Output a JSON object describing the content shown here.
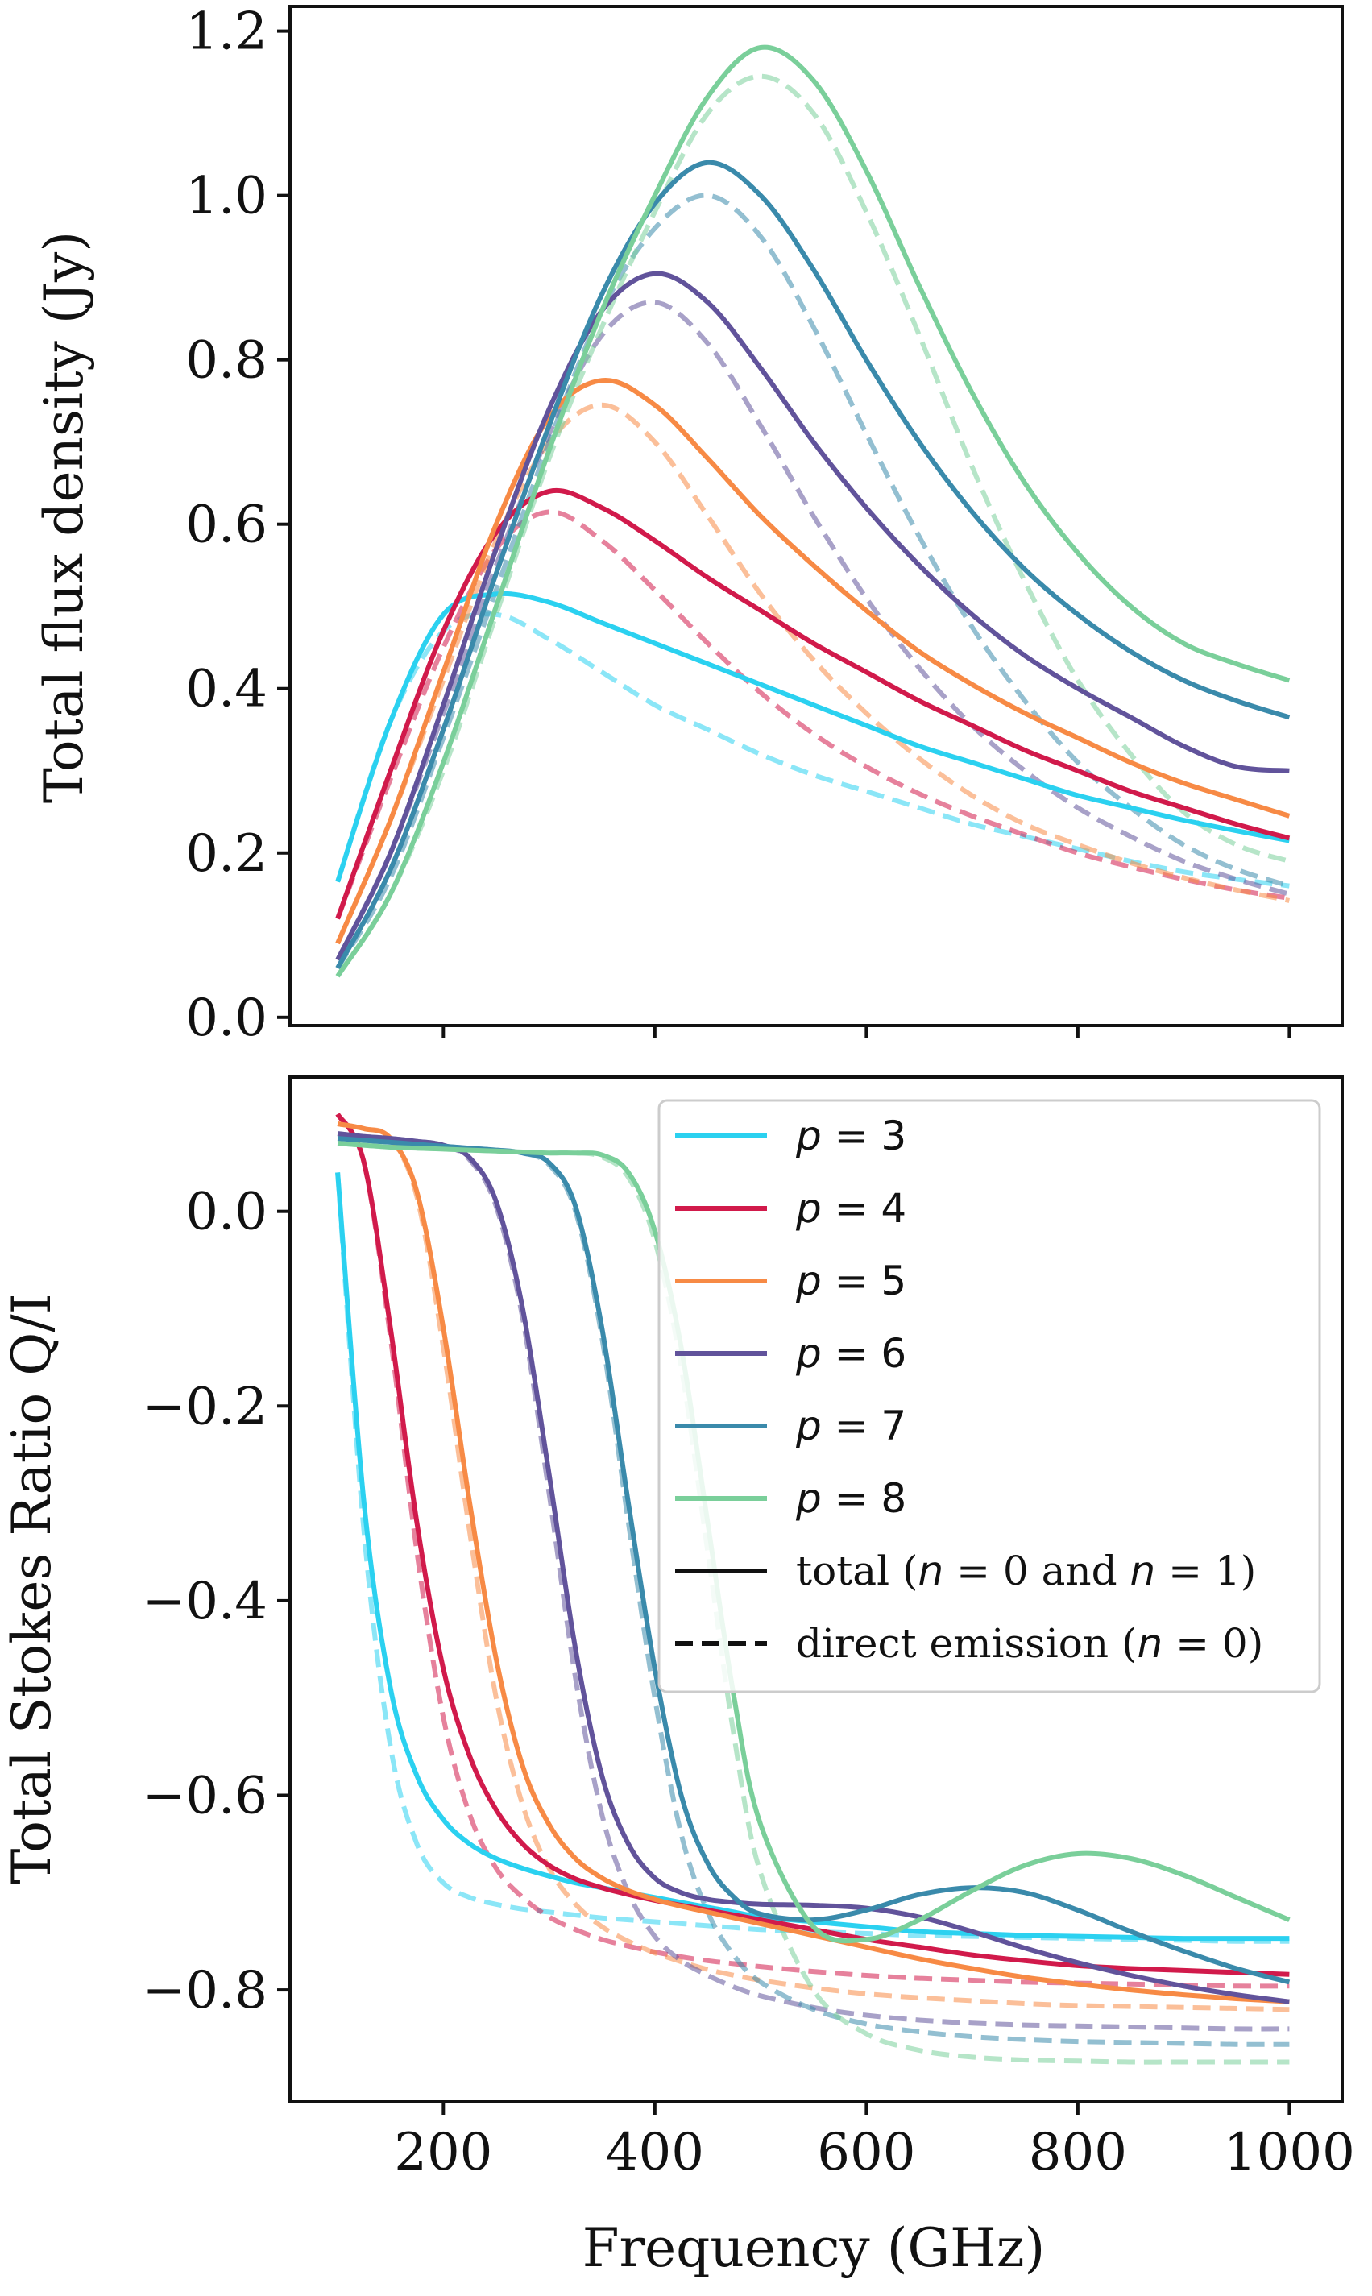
{
  "figure": {
    "xlabel": "Frequency (GHz)",
    "colors": {
      "p3": "#2bd1f0",
      "p4": "#d11a4b",
      "p5": "#f78a45",
      "p6": "#61539b",
      "p7": "#3a8aab",
      "p8": "#7acf9a",
      "line_style_key": "#111111"
    }
  },
  "chart_data": [
    {
      "type": "line",
      "panel": "top",
      "title": "",
      "xlabel": "",
      "ylabel": "Total flux density (Jy)",
      "xlim": [
        55,
        1050
      ],
      "ylim": [
        -0.01,
        1.23
      ],
      "xticks": [
        200,
        400,
        600,
        800,
        1000
      ],
      "show_xtick_labels": false,
      "yticks": [
        0.0,
        0.2,
        0.4,
        0.6,
        0.8,
        1.0,
        1.2
      ],
      "ytick_labels": [
        "0.0",
        "0.2",
        "0.4",
        "0.6",
        "0.8",
        "1.0",
        "1.2"
      ],
      "x": [
        100,
        150,
        200,
        250,
        300,
        350,
        400,
        450,
        500,
        550,
        600,
        650,
        700,
        750,
        800,
        850,
        900,
        950,
        1000
      ],
      "series": [
        {
          "name": "p = 3 total",
          "p": 3,
          "style": "solid",
          "color": "#2bd1f0",
          "values": [
            0.165,
            0.36,
            0.49,
            0.515,
            0.505,
            0.48,
            0.455,
            0.43,
            0.405,
            0.38,
            0.355,
            0.33,
            0.31,
            0.29,
            0.27,
            0.255,
            0.24,
            0.227,
            0.215
          ]
        },
        {
          "name": "p = 3 direct",
          "p": 3,
          "style": "dashed",
          "color": "#2bd1f0",
          "values": [
            0.165,
            0.36,
            0.47,
            0.49,
            0.46,
            0.42,
            0.38,
            0.35,
            0.32,
            0.295,
            0.275,
            0.255,
            0.235,
            0.22,
            0.205,
            0.19,
            0.177,
            0.168,
            0.16
          ]
        },
        {
          "name": "p = 4 total",
          "p": 4,
          "style": "solid",
          "color": "#d11a4b",
          "values": [
            0.12,
            0.3,
            0.47,
            0.59,
            0.64,
            0.62,
            0.58,
            0.535,
            0.495,
            0.455,
            0.42,
            0.385,
            0.355,
            0.325,
            0.3,
            0.275,
            0.255,
            0.235,
            0.218
          ]
        },
        {
          "name": "p = 4 direct",
          "p": 4,
          "style": "dashed",
          "color": "#d11a4b",
          "values": [
            0.12,
            0.29,
            0.45,
            0.57,
            0.615,
            0.58,
            0.52,
            0.455,
            0.395,
            0.345,
            0.305,
            0.272,
            0.245,
            0.222,
            0.2,
            0.183,
            0.168,
            0.155,
            0.145
          ]
        },
        {
          "name": "p = 5 total",
          "p": 5,
          "style": "solid",
          "color": "#f78a45",
          "values": [
            0.09,
            0.24,
            0.42,
            0.6,
            0.73,
            0.775,
            0.745,
            0.68,
            0.61,
            0.55,
            0.495,
            0.445,
            0.405,
            0.37,
            0.34,
            0.31,
            0.285,
            0.265,
            0.245
          ]
        },
        {
          "name": "p = 5 direct",
          "p": 5,
          "style": "dashed",
          "color": "#f78a45",
          "values": [
            0.09,
            0.24,
            0.41,
            0.58,
            0.7,
            0.745,
            0.7,
            0.61,
            0.515,
            0.435,
            0.37,
            0.315,
            0.27,
            0.235,
            0.21,
            0.188,
            0.17,
            0.155,
            0.142
          ]
        },
        {
          "name": "p = 6 total",
          "p": 6,
          "style": "solid",
          "color": "#61539b",
          "values": [
            0.07,
            0.2,
            0.38,
            0.57,
            0.74,
            0.86,
            0.905,
            0.87,
            0.79,
            0.7,
            0.62,
            0.55,
            0.49,
            0.44,
            0.4,
            0.365,
            0.33,
            0.305,
            0.3
          ]
        },
        {
          "name": "p = 6 direct",
          "p": 6,
          "style": "dashed",
          "color": "#61539b",
          "values": [
            0.07,
            0.2,
            0.37,
            0.55,
            0.71,
            0.83,
            0.87,
            0.82,
            0.72,
            0.61,
            0.51,
            0.425,
            0.355,
            0.3,
            0.255,
            0.22,
            0.19,
            0.168,
            0.15
          ]
        },
        {
          "name": "p = 7 total",
          "p": 7,
          "style": "solid",
          "color": "#3a8aab",
          "values": [
            0.06,
            0.18,
            0.35,
            0.54,
            0.72,
            0.88,
            0.99,
            1.04,
            1.0,
            0.91,
            0.8,
            0.7,
            0.615,
            0.545,
            0.49,
            0.445,
            0.41,
            0.385,
            0.365
          ]
        },
        {
          "name": "p = 7 direct",
          "p": 7,
          "style": "dashed",
          "color": "#3a8aab",
          "values": [
            0.06,
            0.17,
            0.34,
            0.52,
            0.7,
            0.86,
            0.96,
            1.0,
            0.95,
            0.84,
            0.71,
            0.585,
            0.475,
            0.385,
            0.31,
            0.255,
            0.21,
            0.18,
            0.16
          ]
        },
        {
          "name": "p = 8 total",
          "p": 8,
          "style": "solid",
          "color": "#7acf9a",
          "values": [
            0.05,
            0.15,
            0.31,
            0.5,
            0.69,
            0.86,
            1.0,
            1.12,
            1.18,
            1.14,
            1.03,
            0.89,
            0.76,
            0.65,
            0.565,
            0.5,
            0.455,
            0.43,
            0.41
          ]
        },
        {
          "name": "p = 8 direct",
          "p": 8,
          "style": "dashed",
          "color": "#7acf9a",
          "values": [
            0.05,
            0.15,
            0.3,
            0.49,
            0.68,
            0.84,
            0.98,
            1.1,
            1.145,
            1.1,
            0.98,
            0.83,
            0.67,
            0.53,
            0.41,
            0.32,
            0.25,
            0.21,
            0.19
          ]
        }
      ]
    },
    {
      "type": "line",
      "panel": "bottom",
      "title": "",
      "xlabel": "Frequency (GHz)",
      "ylabel": "Total Stokes Ratio Q/I",
      "xlim": [
        55,
        1050
      ],
      "ylim": [
        -0.915,
        0.138
      ],
      "xticks": [
        200,
        400,
        600,
        800,
        1000
      ],
      "xtick_labels": [
        "200",
        "400",
        "600",
        "800",
        "1000"
      ],
      "yticks": [
        0.0,
        -0.2,
        -0.4,
        -0.6,
        -0.8
      ],
      "ytick_labels": [
        "0.0",
        "−0.2",
        "−0.4",
        "−0.6",
        "−0.8"
      ],
      "x": [
        100,
        125,
        150,
        175,
        200,
        225,
        250,
        275,
        300,
        325,
        350,
        375,
        400,
        425,
        450,
        475,
        500,
        550,
        600,
        650,
        700,
        750,
        800,
        850,
        900,
        950,
        1000
      ],
      "series": [
        {
          "name": "p = 3 total",
          "p": 3,
          "style": "solid",
          "color": "#2bd1f0",
          "values": [
            0.04,
            -0.3,
            -0.49,
            -0.58,
            -0.625,
            -0.65,
            -0.665,
            -0.675,
            -0.683,
            -0.69,
            -0.695,
            -0.7,
            -0.705,
            -0.71,
            -0.715,
            -0.72,
            -0.725,
            -0.73,
            -0.735,
            -0.74,
            -0.742,
            -0.744,
            -0.745,
            -0.746,
            -0.747,
            -0.747,
            -0.747
          ]
        },
        {
          "name": "p = 3 direct",
          "p": 3,
          "style": "dashed",
          "color": "#2bd1f0",
          "values": [
            0.04,
            -0.33,
            -0.55,
            -0.65,
            -0.69,
            -0.705,
            -0.712,
            -0.717,
            -0.72,
            -0.723,
            -0.726,
            -0.728,
            -0.73,
            -0.732,
            -0.734,
            -0.736,
            -0.738,
            -0.74,
            -0.742,
            -0.744,
            -0.745,
            -0.746,
            -0.747,
            -0.748,
            -0.749,
            -0.75,
            -0.75
          ]
        },
        {
          "name": "p = 4 total",
          "p": 4,
          "style": "solid",
          "color": "#d11a4b",
          "values": [
            0.1,
            0.05,
            -0.12,
            -0.32,
            -0.47,
            -0.56,
            -0.615,
            -0.65,
            -0.672,
            -0.686,
            -0.695,
            -0.702,
            -0.708,
            -0.713,
            -0.718,
            -0.723,
            -0.728,
            -0.738,
            -0.748,
            -0.756,
            -0.764,
            -0.77,
            -0.775,
            -0.778,
            -0.78,
            -0.782,
            -0.784
          ]
        },
        {
          "name": "p = 4 direct",
          "p": 4,
          "style": "dashed",
          "color": "#d11a4b",
          "values": [
            0.1,
            0.05,
            -0.13,
            -0.35,
            -0.52,
            -0.62,
            -0.675,
            -0.705,
            -0.725,
            -0.738,
            -0.748,
            -0.755,
            -0.761,
            -0.766,
            -0.77,
            -0.773,
            -0.776,
            -0.781,
            -0.785,
            -0.788,
            -0.79,
            -0.792,
            -0.793,
            -0.794,
            -0.795,
            -0.796,
            -0.796
          ]
        },
        {
          "name": "p = 5 total",
          "p": 5,
          "style": "solid",
          "color": "#f78a45",
          "values": [
            0.09,
            0.085,
            0.075,
            0.02,
            -0.12,
            -0.3,
            -0.46,
            -0.57,
            -0.63,
            -0.665,
            -0.685,
            -0.698,
            -0.707,
            -0.714,
            -0.72,
            -0.726,
            -0.732,
            -0.744,
            -0.756,
            -0.768,
            -0.778,
            -0.787,
            -0.794,
            -0.8,
            -0.805,
            -0.809,
            -0.812
          ]
        },
        {
          "name": "p = 5 direct",
          "p": 5,
          "style": "dashed",
          "color": "#f78a45",
          "values": [
            0.09,
            0.085,
            0.075,
            0.015,
            -0.14,
            -0.33,
            -0.5,
            -0.61,
            -0.675,
            -0.712,
            -0.735,
            -0.75,
            -0.762,
            -0.771,
            -0.779,
            -0.785,
            -0.79,
            -0.798,
            -0.804,
            -0.808,
            -0.811,
            -0.814,
            -0.816,
            -0.817,
            -0.818,
            -0.819,
            -0.82
          ]
        },
        {
          "name": "p = 6 total",
          "p": 6,
          "style": "solid",
          "color": "#61539b",
          "values": [
            0.08,
            0.077,
            0.075,
            0.072,
            0.068,
            0.055,
            0.01,
            -0.1,
            -0.27,
            -0.45,
            -0.58,
            -0.65,
            -0.685,
            -0.7,
            -0.707,
            -0.71,
            -0.712,
            -0.713,
            -0.716,
            -0.725,
            -0.74,
            -0.757,
            -0.772,
            -0.785,
            -0.796,
            -0.805,
            -0.812
          ]
        },
        {
          "name": "p = 6 direct",
          "p": 6,
          "style": "dashed",
          "color": "#61539b",
          "values": [
            0.08,
            0.077,
            0.075,
            0.072,
            0.068,
            0.053,
            0.005,
            -0.11,
            -0.29,
            -0.48,
            -0.62,
            -0.7,
            -0.745,
            -0.77,
            -0.785,
            -0.797,
            -0.806,
            -0.818,
            -0.826,
            -0.831,
            -0.834,
            -0.836,
            -0.837,
            -0.838,
            -0.839,
            -0.84,
            -0.84
          ]
        },
        {
          "name": "p = 7 total",
          "p": 7,
          "style": "solid",
          "color": "#3a8aab",
          "values": [
            0.075,
            0.073,
            0.071,
            0.069,
            0.067,
            0.065,
            0.063,
            0.06,
            0.05,
            0.005,
            -0.12,
            -0.3,
            -0.47,
            -0.6,
            -0.67,
            -0.705,
            -0.722,
            -0.728,
            -0.718,
            -0.702,
            -0.695,
            -0.7,
            -0.718,
            -0.74,
            -0.76,
            -0.778,
            -0.792
          ]
        },
        {
          "name": "p = 7 direct",
          "p": 7,
          "style": "dashed",
          "color": "#3a8aab",
          "values": [
            0.075,
            0.073,
            0.071,
            0.069,
            0.067,
            0.065,
            0.063,
            0.06,
            0.048,
            0.0,
            -0.13,
            -0.32,
            -0.5,
            -0.64,
            -0.72,
            -0.765,
            -0.792,
            -0.82,
            -0.835,
            -0.843,
            -0.848,
            -0.851,
            -0.853,
            -0.854,
            -0.855,
            -0.856,
            -0.856
          ]
        },
        {
          "name": "p = 8 total",
          "p": 8,
          "style": "solid",
          "color": "#7acf9a",
          "values": [
            0.07,
            0.068,
            0.066,
            0.065,
            0.064,
            0.063,
            0.062,
            0.061,
            0.06,
            0.06,
            0.058,
            0.04,
            -0.02,
            -0.14,
            -0.32,
            -0.5,
            -0.63,
            -0.735,
            -0.748,
            -0.728,
            -0.698,
            -0.672,
            -0.66,
            -0.665,
            -0.682,
            -0.705,
            -0.728
          ]
        },
        {
          "name": "p = 8 direct",
          "p": 8,
          "style": "dashed",
          "color": "#7acf9a",
          "values": [
            0.07,
            0.068,
            0.066,
            0.065,
            0.064,
            0.063,
            0.062,
            0.061,
            0.06,
            0.06,
            0.056,
            0.035,
            -0.03,
            -0.16,
            -0.35,
            -0.54,
            -0.68,
            -0.8,
            -0.845,
            -0.862,
            -0.869,
            -0.872,
            -0.873,
            -0.874,
            -0.874,
            -0.874,
            -0.874
          ]
        }
      ],
      "legend": {
        "placement": "upper-right",
        "entries": [
          {
            "kind": "color",
            "var": "p",
            "value": "3",
            "color": "#2bd1f0"
          },
          {
            "kind": "color",
            "var": "p",
            "value": "4",
            "color": "#d11a4b"
          },
          {
            "kind": "color",
            "var": "p",
            "value": "5",
            "color": "#f78a45"
          },
          {
            "kind": "color",
            "var": "p",
            "value": "6",
            "color": "#61539b"
          },
          {
            "kind": "color",
            "var": "p",
            "value": "7",
            "color": "#3a8aab"
          },
          {
            "kind": "color",
            "var": "p",
            "value": "8",
            "color": "#7acf9a"
          },
          {
            "kind": "style",
            "style": "solid",
            "parts": [
              "total (",
              "n",
              " = 0 and ",
              "n",
              " = 1)"
            ]
          },
          {
            "kind": "style",
            "style": "dashed",
            "parts": [
              "direct emission (",
              "n",
              " = 0)"
            ]
          }
        ]
      }
    }
  ]
}
